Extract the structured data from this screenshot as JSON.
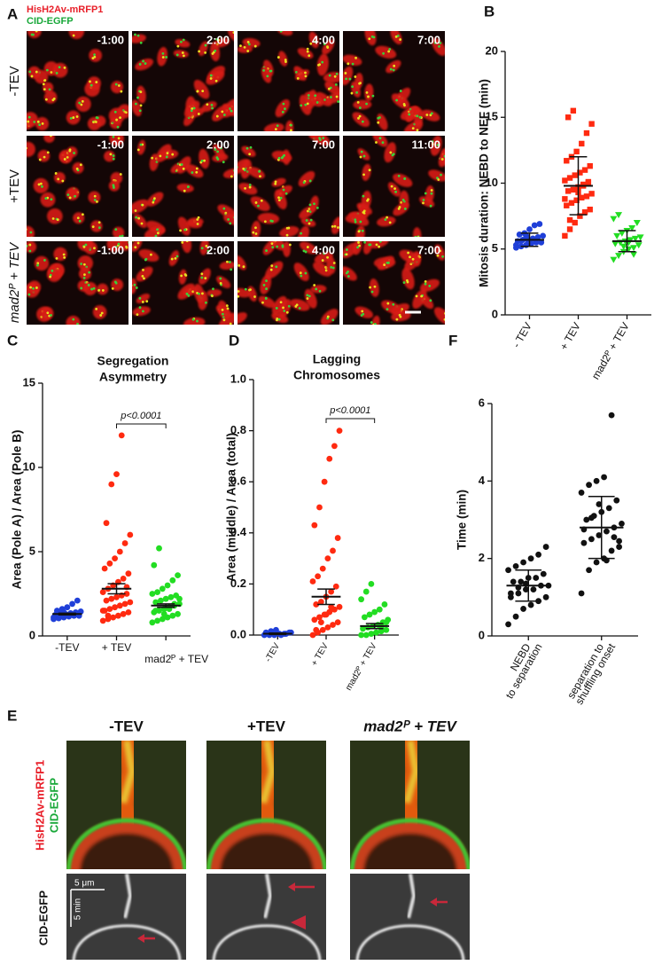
{
  "panel_a": {
    "label": "A",
    "legend": [
      "HisH2Av-mRFP1",
      "CID-EGFP"
    ],
    "rows": [
      {
        "label": "-TEV",
        "times": [
          "-1:00",
          "2:00",
          "4:00",
          "7:00"
        ]
      },
      {
        "label": "+TEV",
        "times": [
          "-1:00",
          "2:00",
          "7:00",
          "11:00"
        ]
      },
      {
        "label": "mad2ᴾ + TEV",
        "times": [
          "-1:00",
          "2:00",
          "4:00",
          "7:00"
        ]
      }
    ]
  },
  "chart_data": [
    {
      "type": "dot",
      "label": "B",
      "ylabel": "Mitosis duration: NEBD to NEF (min)",
      "categories": [
        "- TEV",
        "+ TEV",
        "mad2ᴾ + TEV"
      ],
      "ylim": [
        0,
        20
      ],
      "yticks": [
        0,
        5,
        10,
        15,
        20
      ],
      "groups": [
        {
          "color": "#1f3fd8",
          "marker": "circle",
          "mean": 5.7,
          "error": 0.5,
          "values": [
            5.1,
            5.2,
            5.3,
            5.4,
            5.5,
            5.5,
            5.6,
            5.7,
            5.7,
            5.8,
            5.9,
            6.0,
            6.1,
            6.2,
            6.5,
            6.8,
            6.9,
            5.3,
            5.6,
            6.0
          ]
        },
        {
          "color": "#ff2a10",
          "marker": "square",
          "mean": 9.8,
          "error": 2.2,
          "values": [
            6.0,
            6.5,
            7.0,
            7.5,
            7.8,
            8.0,
            8.3,
            8.5,
            8.7,
            8.9,
            9.0,
            9.2,
            9.4,
            9.5,
            9.7,
            9.8,
            10.0,
            10.2,
            10.4,
            10.6,
            10.8,
            11.0,
            11.3,
            11.7,
            12.0,
            12.4,
            13.0,
            13.8,
            14.5,
            15.0,
            15.5,
            9.3,
            9.9,
            10.1,
            8.8,
            7.2
          ]
        },
        {
          "color": "#22dd22",
          "marker": "triangle-down",
          "mean": 5.6,
          "error": 0.8,
          "values": [
            4.2,
            4.5,
            4.8,
            5.0,
            5.1,
            5.3,
            5.4,
            5.5,
            5.6,
            5.7,
            5.8,
            5.9,
            6.0,
            6.2,
            6.4,
            6.6,
            7.0,
            7.3,
            7.6,
            5.2,
            5.5,
            4.6
          ]
        }
      ]
    },
    {
      "type": "dot",
      "label": "C",
      "title": [
        "Segregation",
        "Asymmetry"
      ],
      "annotation": "p<0.0001",
      "ylabel": "Area (Pole A) / Area (Pole B)",
      "categories": [
        "-TEV",
        "+ TEV",
        "mad2ᴾ + TEV"
      ],
      "ylim": [
        0,
        15
      ],
      "yticks": [
        0,
        5,
        10,
        15
      ],
      "groups": [
        {
          "color": "#1f3fd8",
          "marker": "circle",
          "mean": 1.3,
          "error": 0.05,
          "values": [
            1.0,
            1.05,
            1.1,
            1.15,
            1.2,
            1.2,
            1.25,
            1.3,
            1.3,
            1.35,
            1.4,
            1.45,
            1.5,
            1.6,
            1.7,
            1.9,
            2.1,
            1.1,
            1.25,
            1.4
          ]
        },
        {
          "color": "#ff2a10",
          "marker": "circle",
          "mean": 2.8,
          "error": 0.3,
          "values": [
            0.9,
            1.0,
            1.1,
            1.2,
            1.3,
            1.4,
            1.5,
            1.6,
            1.7,
            1.8,
            1.9,
            2.0,
            2.1,
            2.2,
            2.3,
            2.4,
            2.5,
            2.6,
            2.8,
            3.0,
            3.2,
            3.4,
            3.7,
            4.0,
            4.3,
            4.6,
            5.0,
            5.5,
            6.0,
            6.7,
            9.0,
            9.6,
            11.9,
            2.9,
            1.5,
            1.2
          ]
        },
        {
          "color": "#22dd22",
          "marker": "circle",
          "mean": 1.8,
          "error": 0.1,
          "values": [
            0.8,
            0.9,
            1.0,
            1.1,
            1.2,
            1.3,
            1.4,
            1.5,
            1.6,
            1.7,
            1.8,
            1.9,
            2.0,
            2.1,
            2.2,
            2.3,
            2.4,
            2.5,
            2.6,
            2.8,
            3.0,
            3.3,
            3.6,
            4.2,
            5.2,
            1.3,
            1.6,
            1.9,
            2.2,
            1.5
          ]
        }
      ]
    },
    {
      "type": "dot",
      "label": "D",
      "title": [
        "Lagging",
        "Chromosomes"
      ],
      "annotation": "p<0.0001",
      "ylabel": "Area (middle) / Area (total)",
      "categories": [
        "-TEV",
        "+ TEV",
        "mad2ᴾ + TEV"
      ],
      "ylim": [
        0,
        1
      ],
      "yticks": [
        {
          "value": 0,
          "label": "0.0"
        },
        0.2,
        0.4,
        0.6,
        0.8,
        {
          "value": 1,
          "label": "1.0"
        }
      ],
      "groups": [
        {
          "color": "#1f3fd8",
          "marker": "circle",
          "mean": 0.005,
          "error": 0.003,
          "values": [
            0,
            0,
            0,
            0.005,
            0.005,
            0.01,
            0.01,
            0.015,
            0.02,
            0,
            0.005,
            0.01
          ]
        },
        {
          "color": "#ff2a10",
          "marker": "circle",
          "mean": 0.15,
          "error": 0.03,
          "values": [
            0,
            0.01,
            0.02,
            0.03,
            0.04,
            0.05,
            0.06,
            0.07,
            0.08,
            0.09,
            0.1,
            0.11,
            0.12,
            0.13,
            0.15,
            0.17,
            0.19,
            0.21,
            0.23,
            0.26,
            0.3,
            0.33,
            0.38,
            0.43,
            0.5,
            0.6,
            0.69,
            0.74,
            0.8,
            0.02,
            0.05,
            0.08,
            0.11
          ]
        },
        {
          "color": "#22dd22",
          "marker": "circle",
          "mean": 0.035,
          "error": 0.01,
          "values": [
            0,
            0,
            0.005,
            0.01,
            0.015,
            0.02,
            0.025,
            0.03,
            0.035,
            0.04,
            0.05,
            0.06,
            0.07,
            0.08,
            0.09,
            0.1,
            0.12,
            0.14,
            0.17,
            0.2,
            0.01,
            0.03,
            0.05
          ]
        }
      ]
    },
    {
      "type": "dot",
      "label": "F",
      "ylabel": "Time (min)",
      "categories": [
        [
          "NEBD",
          "to separation"
        ],
        [
          "separation to",
          "shuffling onset"
        ]
      ],
      "ylim": [
        0,
        6
      ],
      "yticks": [
        0,
        2,
        4,
        6
      ],
      "groups": [
        {
          "color": "#111111",
          "marker": "circle",
          "mean": 1.3,
          "error": 0.4,
          "values": [
            0.3,
            0.5,
            0.7,
            0.8,
            0.9,
            1.0,
            1.0,
            1.1,
            1.2,
            1.2,
            1.3,
            1.3,
            1.4,
            1.4,
            1.5,
            1.5,
            1.6,
            1.7,
            1.8,
            1.9,
            2.0,
            2.1,
            2.3,
            1.1,
            1.25,
            1.35
          ]
        },
        {
          "color": "#111111",
          "marker": "circle",
          "mean": 2.8,
          "error": 0.8,
          "values": [
            1.1,
            1.7,
            1.9,
            2.0,
            2.2,
            2.3,
            2.4,
            2.5,
            2.6,
            2.7,
            2.8,
            2.9,
            3.0,
            3.1,
            3.2,
            3.3,
            3.5,
            3.7,
            3.9,
            4.0,
            4.1,
            5.7,
            2.45,
            2.75,
            3.05,
            3.4,
            1.95,
            2.55
          ]
        }
      ]
    }
  ],
  "panel_e": {
    "label": "E",
    "columns": [
      "-TEV",
      "+TEV",
      "mad2ᴾ + TEV"
    ],
    "color_labels": [
      "HisH2Av-mRFP1",
      "CID-EGFP"
    ],
    "gray_label": "CID-EGFP",
    "scale": [
      "5 μm",
      "5 min"
    ]
  }
}
